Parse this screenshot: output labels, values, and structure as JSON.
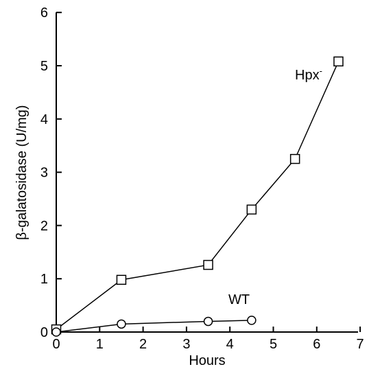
{
  "chart_data": {
    "type": "line",
    "xlabel": "Hours",
    "ylabel": "β-galatosidase (U/mg)",
    "xlim": [
      0,
      7
    ],
    "ylim": [
      0,
      6
    ],
    "x_ticks": [
      "0",
      "1",
      "2",
      "3",
      "4",
      "5",
      "6",
      "7"
    ],
    "y_ticks": [
      "0",
      "1",
      "2",
      "3",
      "4",
      "5",
      "6"
    ],
    "series": [
      {
        "name": "Hpx",
        "name_superscript": "-",
        "marker": "square",
        "x": [
          0,
          1.5,
          3.5,
          4.5,
          5.5,
          6.5
        ],
        "y": [
          0.05,
          0.98,
          1.26,
          2.3,
          3.25,
          5.08
        ]
      },
      {
        "name": "WT",
        "marker": "circle",
        "x": [
          0,
          1.5,
          3.5,
          4.5
        ],
        "y": [
          0.0,
          0.15,
          0.2,
          0.22
        ]
      }
    ]
  }
}
